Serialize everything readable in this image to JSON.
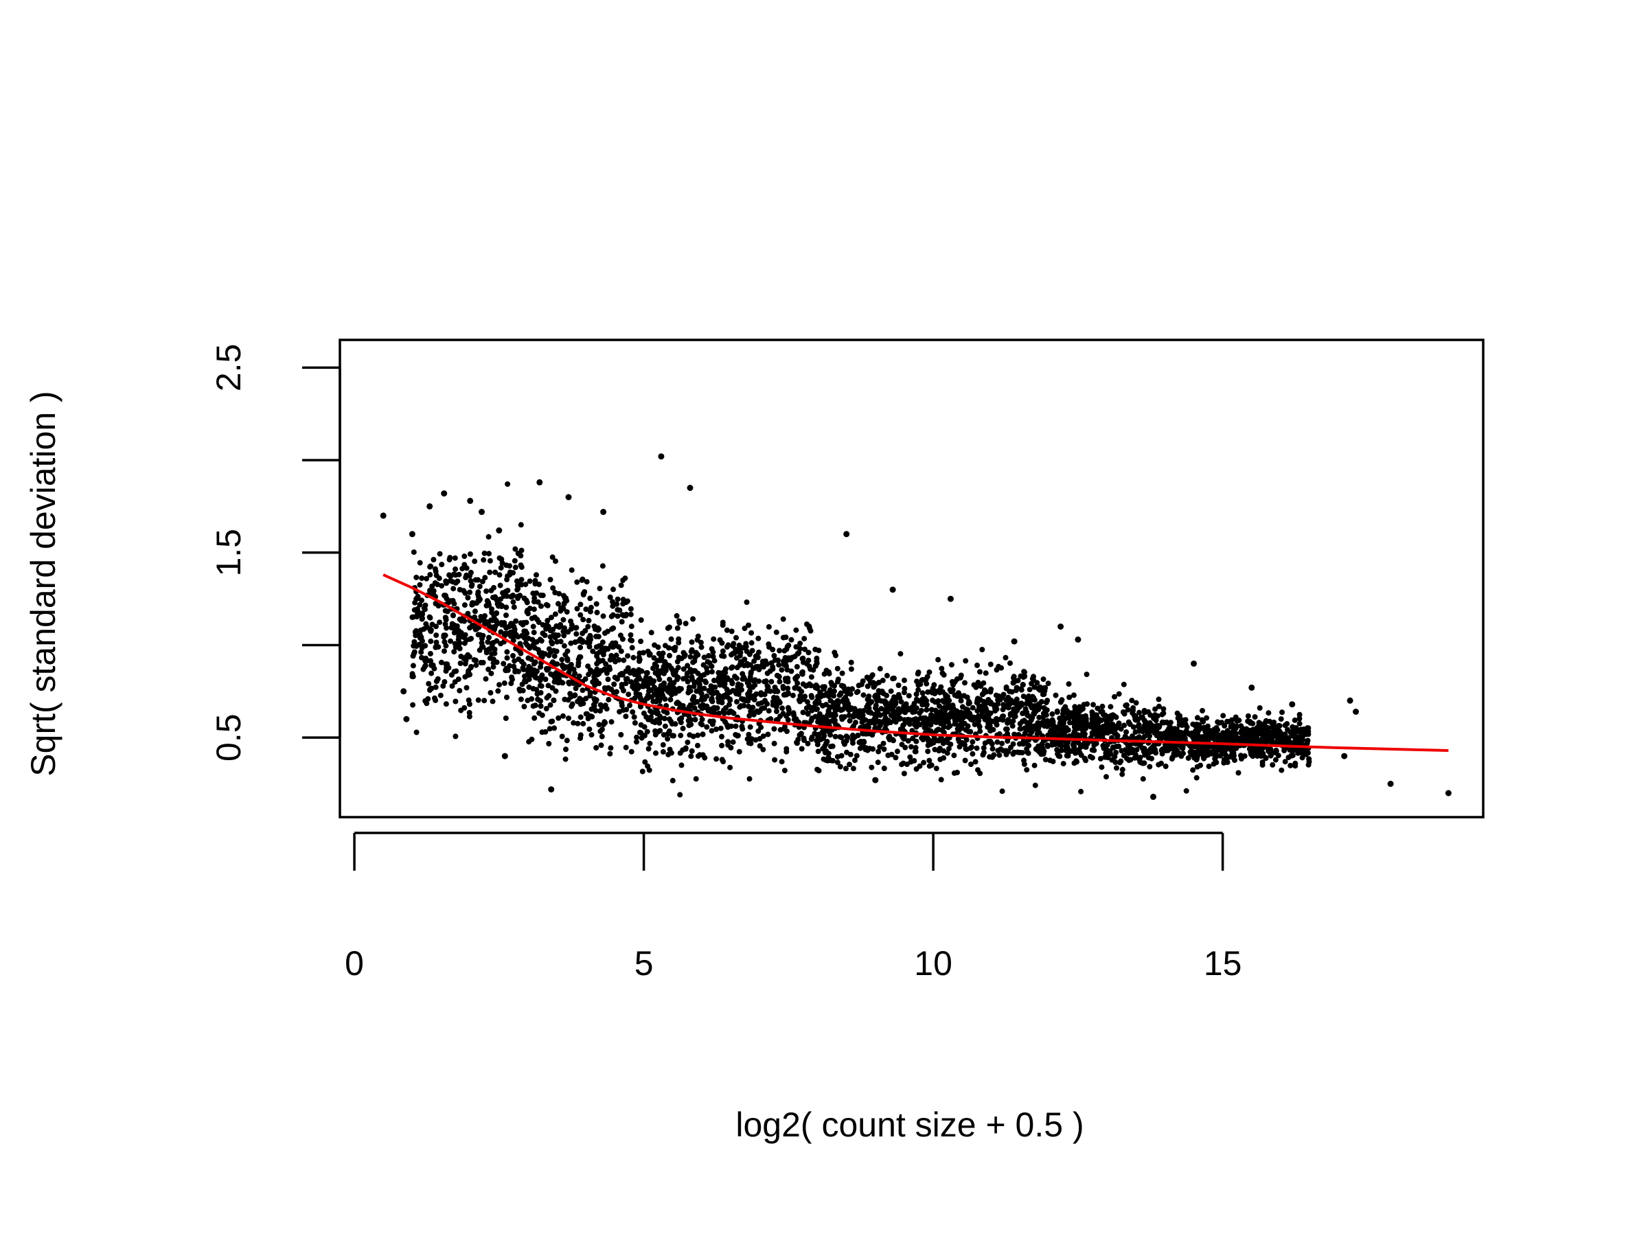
{
  "chart_data": {
    "type": "scatter",
    "title": "",
    "xlabel": "log2( count size + 0.5 )",
    "ylabel": "Sqrt( standard deviation )",
    "xlim": [
      -0.25,
      19.5
    ],
    "ylim": [
      0.07,
      2.65
    ],
    "x_ticks": [
      {
        "value": 0,
        "label": "0"
      },
      {
        "value": 5,
        "label": "5"
      },
      {
        "value": 10,
        "label": "10"
      },
      {
        "value": 15,
        "label": "15"
      }
    ],
    "y_ticks": [
      {
        "value": 0.5,
        "label": "0.5"
      },
      {
        "value": 1.0,
        "label": ""
      },
      {
        "value": 1.5,
        "label": "1.5"
      },
      {
        "value": 2.0,
        "label": ""
      },
      {
        "value": 2.5,
        "label": "2.5"
      }
    ],
    "grid": false,
    "legend": "none",
    "colors": {
      "points": "#000000",
      "trend": "#ee0000",
      "axes": "#000000"
    },
    "series": [
      {
        "kind": "points",
        "points": [
          [
            0.5,
            1.7
          ],
          [
            0.85,
            0.75
          ],
          [
            0.9,
            0.6
          ],
          [
            1.0,
            1.6
          ],
          [
            1.3,
            1.75
          ],
          [
            1.55,
            1.82
          ],
          [
            2.0,
            1.78
          ],
          [
            2.2,
            1.72
          ],
          [
            2.5,
            1.62
          ],
          [
            2.6,
            0.4
          ],
          [
            3.2,
            1.88
          ],
          [
            3.4,
            0.22
          ],
          [
            3.7,
            1.8
          ],
          [
            4.3,
            1.72
          ],
          [
            5.3,
            2.02
          ],
          [
            5.8,
            1.85
          ],
          [
            8.5,
            1.6
          ],
          [
            9.3,
            1.3
          ],
          [
            10.3,
            1.25
          ],
          [
            11.4,
            1.02
          ],
          [
            12.2,
            1.1
          ],
          [
            12.5,
            1.03
          ],
          [
            14.5,
            0.9
          ],
          [
            15.5,
            0.77
          ],
          [
            16.2,
            0.68
          ],
          [
            17.2,
            0.7
          ],
          [
            17.3,
            0.64
          ],
          [
            17.1,
            0.4
          ],
          [
            17.9,
            0.25
          ],
          [
            18.9,
            0.2
          ],
          [
            13.8,
            0.18
          ],
          [
            9.0,
            0.27
          ]
        ]
      },
      {
        "kind": "cloud",
        "segments": [
          {
            "from": 1.0,
            "to": 3.0,
            "y_low": 0.65,
            "y_high": 1.55,
            "spread": 0.28
          },
          {
            "from": 3.0,
            "to": 4.8,
            "y_low": 0.4,
            "y_high": 1.4,
            "spread": 0.3
          },
          {
            "from": 4.8,
            "to": 8.0,
            "y_low": 0.35,
            "y_high": 1.15,
            "spread": 0.2
          },
          {
            "from": 8.0,
            "to": 12.0,
            "y_low": 0.32,
            "y_high": 0.9,
            "spread": 0.15
          },
          {
            "from": 12.0,
            "to": 14.0,
            "y_low": 0.33,
            "y_high": 0.72,
            "spread": 0.12
          },
          {
            "from": 14.0,
            "to": 16.5,
            "y_low": 0.35,
            "y_high": 0.62,
            "spread": 0.11
          }
        ]
      },
      {
        "kind": "trend",
        "x": [
          0.5,
          1.0,
          1.5,
          2.0,
          2.5,
          3.0,
          3.5,
          4.0,
          4.5,
          5.0,
          5.5,
          6.0,
          6.5,
          7.0,
          7.5,
          8.0,
          9.0,
          10.0,
          11.0,
          12.0,
          13.0,
          14.0,
          15.0,
          16.0,
          17.0,
          18.0,
          18.9
        ],
        "y": [
          1.38,
          1.31,
          1.23,
          1.14,
          1.05,
          0.96,
          0.87,
          0.78,
          0.72,
          0.68,
          0.65,
          0.625,
          0.605,
          0.59,
          0.575,
          0.56,
          0.535,
          0.515,
          0.503,
          0.495,
          0.485,
          0.476,
          0.467,
          0.455,
          0.445,
          0.437,
          0.43
        ]
      }
    ]
  }
}
